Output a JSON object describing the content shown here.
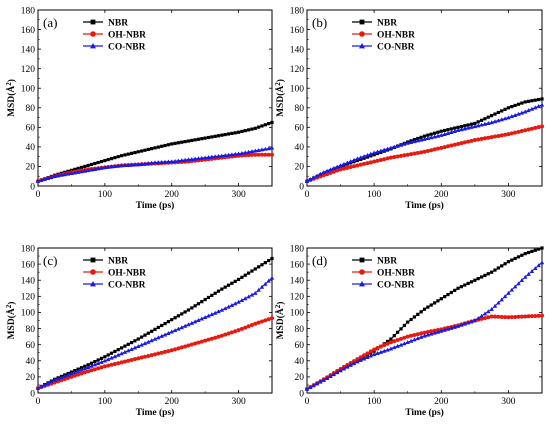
{
  "chart_data": [
    {
      "type": "line",
      "panel_label": "(a)",
      "xlabel": "Time (ps)",
      "ylabel": "MSD(Å²)",
      "xlim": [
        0,
        350
      ],
      "ylim": [
        0,
        180
      ],
      "x_ticks": [
        0,
        100,
        200,
        300
      ],
      "y_ticks": [
        0,
        20,
        40,
        60,
        80,
        100,
        120,
        140,
        160,
        180
      ],
      "grid": false,
      "legend_position": "top-left",
      "x": [
        0,
        25,
        50,
        75,
        100,
        125,
        150,
        175,
        200,
        225,
        250,
        275,
        300,
        325,
        350
      ],
      "series": [
        {
          "name": "NBR",
          "color": "#000000",
          "marker": "square",
          "values": [
            5,
            11,
            16,
            21,
            26,
            31,
            35,
            39,
            43,
            46,
            49,
            52,
            55,
            59,
            65
          ]
        },
        {
          "name": "OH-NBR",
          "color": "#e8190f",
          "marker": "circle",
          "values": [
            5,
            10,
            14,
            17,
            19,
            21,
            22,
            23,
            24,
            25,
            27,
            29,
            31,
            32,
            32
          ]
        },
        {
          "name": "CO-NBR",
          "color": "#1a1ae6",
          "marker": "triangle",
          "values": [
            5,
            10,
            13,
            16,
            19,
            21,
            22,
            24,
            25,
            27,
            29,
            31,
            33,
            36,
            39
          ]
        }
      ]
    },
    {
      "type": "line",
      "panel_label": "(b)",
      "xlabel": "Time (ps)",
      "ylabel": "MSD(Å²)",
      "xlim": [
        0,
        350
      ],
      "ylim": [
        0,
        180
      ],
      "x_ticks": [
        0,
        100,
        200,
        300
      ],
      "y_ticks": [
        0,
        20,
        40,
        60,
        80,
        100,
        120,
        140,
        160,
        180
      ],
      "grid": false,
      "legend_position": "top-left",
      "x": [
        0,
        25,
        50,
        75,
        100,
        125,
        150,
        175,
        200,
        225,
        250,
        275,
        300,
        325,
        350
      ],
      "series": [
        {
          "name": "NBR",
          "color": "#000000",
          "marker": "square",
          "values": [
            5,
            13,
            20,
            26,
            32,
            38,
            45,
            51,
            56,
            60,
            64,
            72,
            80,
            86,
            89
          ]
        },
        {
          "name": "OH-NBR",
          "color": "#e8190f",
          "marker": "circle",
          "values": [
            5,
            11,
            17,
            21,
            25,
            29,
            32,
            35,
            39,
            43,
            47,
            50,
            53,
            57,
            61
          ]
        },
        {
          "name": "CO-NBR",
          "color": "#1a1ae6",
          "marker": "triangle",
          "values": [
            5,
            14,
            21,
            28,
            34,
            39,
            44,
            48,
            52,
            57,
            61,
            65,
            70,
            76,
            83
          ]
        }
      ]
    },
    {
      "type": "line",
      "panel_label": "(c)",
      "xlabel": "Time (ps)",
      "ylabel": "MSD(Å²)",
      "xlim": [
        0,
        350
      ],
      "ylim": [
        0,
        180
      ],
      "x_ticks": [
        0,
        100,
        200,
        300
      ],
      "y_ticks": [
        0,
        20,
        40,
        60,
        80,
        100,
        120,
        140,
        160,
        180
      ],
      "grid": false,
      "legend_position": "top-left",
      "x": [
        0,
        25,
        50,
        75,
        100,
        125,
        150,
        175,
        200,
        225,
        250,
        275,
        300,
        325,
        350
      ],
      "series": [
        {
          "name": "NBR",
          "color": "#000000",
          "marker": "square",
          "values": [
            6,
            17,
            26,
            35,
            45,
            56,
            67,
            79,
            91,
            103,
            116,
            129,
            141,
            154,
            167
          ]
        },
        {
          "name": "OH-NBR",
          "color": "#e8190f",
          "marker": "circle",
          "values": [
            6,
            13,
            20,
            27,
            33,
            38,
            43,
            48,
            53,
            59,
            65,
            71,
            78,
            86,
            93
          ]
        },
        {
          "name": "CO-NBR",
          "color": "#1a1ae6",
          "marker": "triangle",
          "values": [
            6,
            16,
            24,
            32,
            40,
            49,
            58,
            67,
            76,
            85,
            94,
            103,
            113,
            124,
            143
          ]
        }
      ]
    },
    {
      "type": "line",
      "panel_label": "(d)",
      "xlabel": "Time (ps)",
      "ylabel": "MSD(Å²)",
      "xlim": [
        0,
        350
      ],
      "ylim": [
        0,
        180
      ],
      "x_ticks": [
        0,
        100,
        200,
        300
      ],
      "y_ticks": [
        0,
        20,
        40,
        60,
        80,
        100,
        120,
        140,
        160,
        180
      ],
      "grid": false,
      "legend_position": "top-left",
      "x": [
        0,
        25,
        50,
        75,
        100,
        125,
        150,
        175,
        200,
        225,
        250,
        275,
        300,
        325,
        350
      ],
      "series": [
        {
          "name": "NBR",
          "color": "#000000",
          "marker": "square",
          "values": [
            5,
            16,
            28,
            40,
            52,
            67,
            88,
            104,
            117,
            130,
            140,
            150,
            163,
            173,
            180
          ]
        },
        {
          "name": "OH-NBR",
          "color": "#e8190f",
          "marker": "circle",
          "values": [
            5,
            17,
            30,
            42,
            54,
            63,
            70,
            75,
            79,
            84,
            90,
            95,
            94,
            95,
            96
          ]
        },
        {
          "name": "CO-NBR",
          "color": "#1a1ae6",
          "marker": "triangle",
          "values": [
            5,
            16,
            28,
            39,
            48,
            55,
            63,
            71,
            77,
            83,
            90,
            104,
            124,
            144,
            162
          ]
        }
      ]
    }
  ]
}
